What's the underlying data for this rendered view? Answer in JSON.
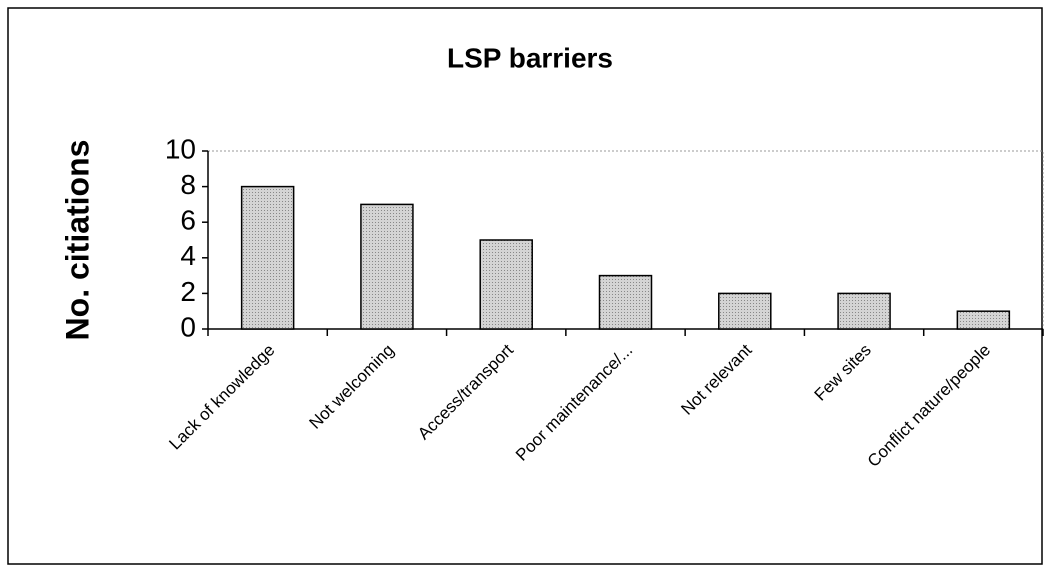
{
  "chart_data": {
    "type": "bar",
    "title": "LSP barriers",
    "y_label": "No. citiations",
    "categories": [
      "Lack of knowledge",
      "Not welcoming",
      "Access/transport",
      "Poor maintenance/...",
      "Not relevant",
      "Few sites",
      "Conflict nature/people"
    ],
    "values": [
      8,
      7,
      5,
      3,
      2,
      2,
      1
    ],
    "color": "#c8c8c8",
    "ylim": [
      0,
      10
    ],
    "yticks": [
      0,
      2,
      4,
      6,
      8,
      10
    ],
    "grid": false
  }
}
